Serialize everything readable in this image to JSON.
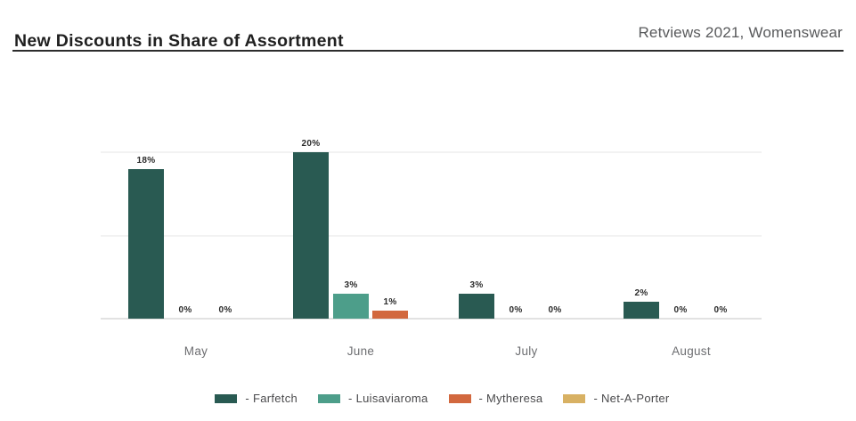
{
  "header": {
    "title": "New Discounts in Share of Assortment",
    "source": "Retviews 2021, Womenswear"
  },
  "chart_data": {
    "type": "bar",
    "title": "New Discounts in Share of Assortment",
    "subtitle": "Retviews 2021, Womenswear",
    "categories": [
      "May",
      "June",
      "July",
      "August"
    ],
    "series": [
      {
        "name": "Farfetch",
        "color": "#295a52",
        "values": [
          18,
          20,
          3,
          2
        ]
      },
      {
        "name": "Luisaviaroma",
        "color": "#4d9e8a",
        "values": [
          0,
          3,
          0,
          0
        ]
      },
      {
        "name": "Mytheresa",
        "color": "#d2683e",
        "values": [
          0,
          1,
          0,
          0
        ]
      },
      {
        "name": "Net-A-Porter",
        "color": "#d8b163",
        "values": [
          null,
          null,
          null,
          null
        ]
      }
    ],
    "unit": "%",
    "xlabel": "",
    "ylabel": "",
    "ylim": [
      0,
      20
    ],
    "gridline_values": [
      10,
      20
    ],
    "grid": true,
    "axis_tick_labels": false,
    "value_labels": true,
    "legend_position": "bottom"
  },
  "legend": {
    "items": [
      {
        "label": "- Farfetch",
        "color": "#295a52"
      },
      {
        "label": "- Luisaviaroma",
        "color": "#4d9e8a"
      },
      {
        "label": "- Mytheresa",
        "color": "#d2683e"
      },
      {
        "label": "- Net-A-Porter",
        "color": "#d8b163"
      }
    ]
  }
}
